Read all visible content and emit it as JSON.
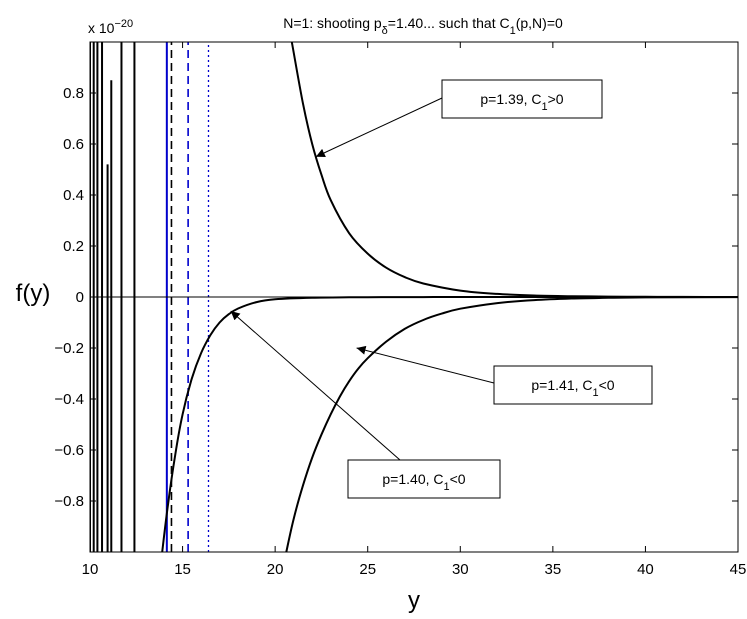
{
  "chart_data": {
    "type": "line",
    "title": {
      "prefix": "N=1: shooting p",
      "sub1": "δ",
      "middle": "=1.40... such that C",
      "sub2": "1",
      "suffix": "(p,N)=0"
    },
    "xlabel": "y",
    "ylabel": "f(y)",
    "exponent_label": {
      "base": "x 10",
      "power": "−20"
    },
    "xlim": [
      10,
      45
    ],
    "ylim": [
      -1,
      1
    ],
    "xticks": [
      10,
      15,
      20,
      25,
      30,
      35,
      40,
      45
    ],
    "yticks": [
      -0.8,
      -0.6,
      -0.4,
      -0.2,
      0,
      0.2,
      0.4,
      0.6,
      0.8
    ],
    "ytick_labels": [
      "−0.8",
      "−0.6",
      "−0.4",
      "−0.2",
      "0",
      "0.2",
      "0.4",
      "0.6",
      "0.8"
    ],
    "grid": false,
    "colors": {
      "curve": "#000000",
      "blue": "#0000cc"
    },
    "series": [
      {
        "label": {
          "pre": "p=1.39, C",
          "sub": "1",
          "post": ">0"
        },
        "x": [
          20.9,
          21.5,
          22,
          22.5,
          23,
          24,
          25,
          26,
          27,
          28,
          30,
          32,
          34,
          36,
          38,
          40,
          42,
          45
        ],
        "y": [
          1.0,
          0.76,
          0.6,
          0.48,
          0.38,
          0.25,
          0.17,
          0.115,
          0.078,
          0.053,
          0.025,
          0.012,
          0.006,
          0.003,
          0.0015,
          0.0008,
          0.0004,
          0.0001
        ]
      },
      {
        "label": {
          "pre": "p=1.40, C",
          "sub": "1",
          "post": "<0"
        },
        "x": [
          13.9,
          14.2,
          14.6,
          15,
          15.5,
          16,
          16.5,
          17,
          17.5,
          18,
          19,
          20,
          22,
          24,
          26,
          28,
          30,
          35,
          40,
          45
        ],
        "y": [
          -1.0,
          -0.82,
          -0.62,
          -0.46,
          -0.32,
          -0.22,
          -0.15,
          -0.1,
          -0.067,
          -0.045,
          -0.02,
          -0.009,
          -0.003,
          -0.0012,
          -0.0005,
          -0.0002,
          -0.0001,
          -3e-05,
          0,
          0
        ]
      },
      {
        "label": {
          "pre": "p=1.41, C",
          "sub": "1",
          "post": "<0"
        },
        "x": [
          20.6,
          21,
          21.5,
          22,
          22.5,
          23,
          23.5,
          24,
          24.5,
          25,
          26,
          27,
          28,
          29,
          30,
          32,
          34,
          36,
          38,
          40,
          45
        ],
        "y": [
          -1.0,
          -0.87,
          -0.74,
          -0.63,
          -0.54,
          -0.46,
          -0.39,
          -0.33,
          -0.28,
          -0.24,
          -0.175,
          -0.125,
          -0.09,
          -0.065,
          -0.046,
          -0.024,
          -0.012,
          -0.006,
          -0.003,
          -0.0015,
          -0.0002
        ]
      }
    ],
    "vertical_lines": [
      {
        "x": 10.0,
        "style": "solid",
        "color": "#000000",
        "y_top": 1.0
      },
      {
        "x": 10.2,
        "style": "solid",
        "color": "#000000",
        "y_top": 1.0
      },
      {
        "x": 10.4,
        "style": "solid",
        "color": "#000000",
        "y_top": 1.0
      },
      {
        "x": 10.65,
        "style": "solid",
        "color": "#000000",
        "y_top": 1.0
      },
      {
        "x": 10.95,
        "style": "solid",
        "color": "#000000",
        "y_top": 0.52
      },
      {
        "x": 11.15,
        "style": "solid",
        "color": "#000000",
        "y_top": 0.85
      },
      {
        "x": 11.7,
        "style": "solid",
        "color": "#000000",
        "y_top": 1.0
      },
      {
        "x": 12.4,
        "style": "solid",
        "color": "#000000",
        "y_top": 1.0
      },
      {
        "x": 14.15,
        "style": "solid",
        "color": "#0000cc",
        "y_top": 1.0
      },
      {
        "x": 14.4,
        "style": "dashed",
        "color": "#000000",
        "y_top": 1.0
      },
      {
        "x": 15.3,
        "style": "dashed",
        "color": "#0000cc",
        "y_top": 1.0
      },
      {
        "x": 16.4,
        "style": "dotted",
        "color": "#0000cc",
        "y_top": 1.0
      }
    ],
    "annotations": [
      {
        "series": 0,
        "tip": [
          22.2,
          0.55
        ]
      },
      {
        "series": 2,
        "tip": [
          24.4,
          -0.2
        ]
      },
      {
        "series": 1,
        "tip": [
          17.6,
          -0.055
        ]
      }
    ]
  }
}
